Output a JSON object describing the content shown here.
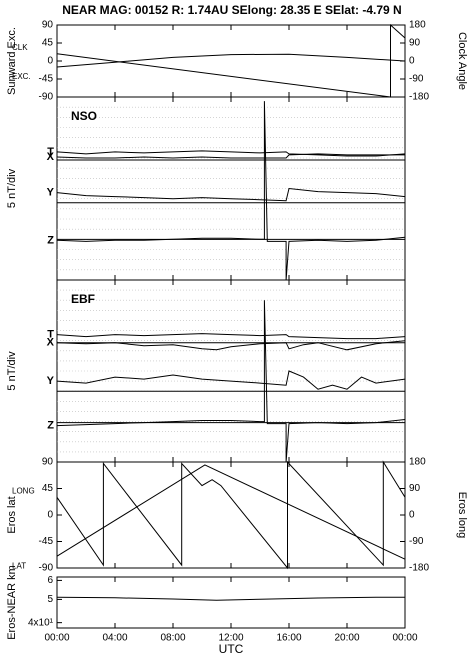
{
  "chart_data": [
    {
      "type": "line",
      "title": "NEAR MAG: 00152  R: 1.74AU  SElong:   28.35 E  SElat:   -4.79 N",
      "ylabel": "Sunward Exc.",
      "y2label": "Clock Angle",
      "ylim": [
        -90,
        90
      ],
      "yticks": [
        90,
        45,
        0,
        -45,
        -90
      ],
      "y2lim": [
        -180,
        180
      ],
      "y2ticks": [
        180,
        90,
        0,
        -90,
        -180
      ],
      "series": [
        {
          "name": "CLK",
          "color": "#000000",
          "axis": "y2",
          "x": [
            0,
            23,
            23,
            24
          ],
          "values": [
            36,
            -180,
            180,
            115
          ]
        },
        {
          "name": "EXC.",
          "color": "#000000",
          "x": [
            0,
            4,
            8,
            12,
            16,
            20,
            24
          ],
          "values": [
            -15,
            -3,
            9,
            16,
            17,
            9,
            0
          ]
        }
      ]
    },
    {
      "type": "line",
      "title": "NSO",
      "ylabel": "5 nT/div",
      "ylim": [
        0,
        90
      ],
      "grid_step": 5,
      "zero_lines": [
        59,
        38,
        20
      ],
      "series": [
        {
          "name": "T",
          "color": "#000000",
          "x": [
            0,
            2,
            4,
            6,
            8,
            10,
            12,
            14,
            15.8,
            16,
            18,
            20,
            22,
            24
          ],
          "values": [
            63,
            62,
            63,
            62.5,
            63,
            63.5,
            63,
            62.5,
            63,
            62,
            61.5,
            61,
            61,
            62
          ]
        },
        {
          "name": "X",
          "color": "#000000",
          "x": [
            0,
            2,
            4,
            6,
            8,
            10,
            12,
            14,
            15.8,
            16,
            18,
            20,
            22,
            24
          ],
          "values": [
            60.5,
            60,
            60,
            60.5,
            60,
            60.5,
            60,
            60,
            60,
            61.5,
            62,
            61.5,
            61.5,
            61.5
          ]
        },
        {
          "name": "Y",
          "color": "#000000",
          "x": [
            0,
            2,
            4,
            6,
            8,
            10,
            12,
            14,
            15.8,
            16,
            18,
            20,
            22,
            24
          ],
          "values": [
            43,
            41.5,
            41,
            40.5,
            40,
            40.5,
            40,
            39.5,
            39,
            45,
            43.5,
            43,
            42.5,
            41
          ]
        },
        {
          "name": "Z",
          "color": "#000000",
          "x": [
            0,
            2,
            4,
            6,
            8,
            10,
            12,
            14,
            14.3,
            14.3,
            14.5,
            15.8,
            15.8,
            16,
            18,
            20,
            22,
            24
          ],
          "values": [
            19.5,
            19,
            19.5,
            19.5,
            20,
            20.5,
            20.5,
            20,
            20,
            88,
            19,
            19,
            0,
            19,
            19.5,
            19,
            19.5,
            21
          ]
        }
      ]
    },
    {
      "type": "line",
      "title": "EBF",
      "ylabel": "5 nT/div",
      "ylim": [
        0,
        90
      ],
      "grid_step": 5,
      "zero_lines": [
        59,
        35,
        19.5
      ],
      "series": [
        {
          "name": "T",
          "color": "#000000",
          "x": [
            0,
            2,
            4,
            6,
            8,
            10,
            12,
            14,
            15.8,
            16,
            18,
            20,
            22,
            24
          ],
          "values": [
            63,
            62,
            63,
            62.5,
            63,
            63.5,
            63,
            62.5,
            63,
            62,
            61.5,
            61,
            61,
            62
          ]
        },
        {
          "name": "X",
          "color": "#000000",
          "x": [
            0,
            2,
            4,
            6,
            8,
            10,
            11,
            12,
            14,
            15.8,
            16,
            17,
            18,
            20,
            22,
            24
          ],
          "values": [
            59,
            58.5,
            59,
            57.5,
            58,
            56,
            55.5,
            57,
            58.5,
            59,
            56,
            58,
            59,
            55.5,
            58.5,
            60
          ]
        },
        {
          "name": "Y",
          "color": "#000000",
          "x": [
            0,
            2,
            4,
            6,
            8,
            10,
            12,
            14,
            15.8,
            16,
            17,
            18,
            19,
            20,
            21,
            22,
            24
          ],
          "values": [
            40,
            39,
            42,
            41,
            43,
            41,
            40,
            39,
            38,
            45,
            42,
            36,
            38,
            36,
            42,
            39,
            41
          ]
        },
        {
          "name": "Z",
          "color": "#000000",
          "x": [
            0,
            2,
            4,
            6,
            8,
            10,
            12,
            14,
            14.3,
            14.3,
            14.5,
            15.8,
            15.8,
            16,
            18,
            20,
            22,
            24
          ],
          "values": [
            18,
            18.5,
            19,
            19.5,
            20,
            20.5,
            20.5,
            20,
            20,
            80,
            19,
            19,
            0,
            19,
            19.5,
            19,
            19.5,
            21
          ]
        }
      ]
    },
    {
      "type": "line",
      "ylabel": "Eros lat",
      "y2label": "Eros long",
      "ylim": [
        -90,
        90
      ],
      "yticks": [
        90,
        45,
        0,
        -45,
        -90
      ],
      "y2lim": [
        -180,
        180
      ],
      "y2ticks": [
        180,
        90,
        0,
        -90,
        -180
      ],
      "series": [
        {
          "name": "LONG",
          "color": "#000000",
          "axis": "y2",
          "x": [
            0,
            3.2,
            3.2,
            8.6,
            8.6,
            10,
            10.7,
            11.3,
            15.9,
            15.9,
            22.5,
            22.5,
            24
          ],
          "values": [
            60,
            -170,
            175,
            -170,
            175,
            100,
            120,
            100,
            -180,
            180,
            -170,
            180,
            60
          ]
        },
        {
          "name": "LAT",
          "color": "#000000",
          "x": [
            0,
            10.2,
            24
          ],
          "values": [
            -70,
            85,
            -75
          ]
        }
      ]
    },
    {
      "type": "line",
      "ylabel": "Eros-NEAR km",
      "xlabel": "UTC",
      "ylog": true,
      "ylim": [
        38,
        62
      ],
      "yticks": [
        {
          "value": 60,
          "label": "6"
        },
        {
          "value": 50,
          "label": "5"
        },
        {
          "value": 40,
          "label": "4x10¹"
        }
      ],
      "xlim": [
        0,
        24
      ],
      "xticks": [
        {
          "value": 0,
          "label": "00:00"
        },
        {
          "value": 4,
          "label": "04:00"
        },
        {
          "value": 8,
          "label": "08:00"
        },
        {
          "value": 12,
          "label": "12:00"
        },
        {
          "value": 16,
          "label": "16:00"
        },
        {
          "value": 20,
          "label": "20:00"
        },
        {
          "value": 24,
          "label": "00:00"
        }
      ],
      "series": [
        {
          "name": "",
          "color": "#000000",
          "x": [
            0,
            4,
            8,
            11,
            14,
            18,
            22,
            24
          ],
          "values": [
            51,
            50.8,
            50.2,
            49.6,
            50.1,
            50.7,
            51,
            51
          ]
        }
      ]
    }
  ]
}
